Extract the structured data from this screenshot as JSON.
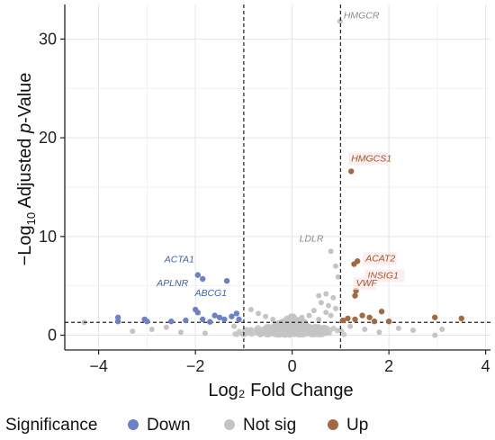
{
  "chart_data": {
    "type": "scatter",
    "title": "",
    "xlabel": "Log₂ Fold Change",
    "ylabel_prefix": "−Log",
    "ylabel_sub": "10",
    "ylabel_mid": " Adjusted ",
    "ylabel_italic": "p",
    "ylabel_suffix": "-Value",
    "xlim": [
      -4.7,
      4.1
    ],
    "ylim": [
      -1.5,
      33.5
    ],
    "x_ticks": [
      -4,
      -2,
      0,
      2,
      4
    ],
    "y_ticks": [
      0,
      10,
      20,
      30
    ],
    "grid": true,
    "thresholds": {
      "log2fc": [
        -1,
        1
      ],
      "neg_log10_padj": 1.3
    },
    "colors": {
      "Down": "#6d82c6",
      "Not sig": "#c4c4c4",
      "Up": "#a16a43",
      "label_down": "#3f5fae",
      "label_up": "#9a5a26",
      "label_ns": "#8a8a8a",
      "label_bg_up": "#fbe4ea"
    },
    "legend": {
      "title": "Significance",
      "position": "bottom",
      "entries": [
        {
          "label": "Down",
          "color_key": "Down"
        },
        {
          "label": "Not sig",
          "color_key": "Not sig"
        },
        {
          "label": "Up",
          "color_key": "Up"
        }
      ]
    },
    "series": [
      {
        "name": "Down",
        "points": [
          [
            -1.95,
            6.1
          ],
          [
            -1.85,
            5.7
          ],
          [
            -1.35,
            5.5
          ],
          [
            -2.0,
            2.6
          ],
          [
            -1.95,
            2.3
          ],
          [
            -1.6,
            2.0
          ],
          [
            -1.5,
            1.8
          ],
          [
            -1.25,
            1.9
          ],
          [
            -1.15,
            2.2
          ],
          [
            -1.1,
            1.6
          ],
          [
            -1.4,
            1.6
          ],
          [
            -1.85,
            1.6
          ],
          [
            -3.6,
            1.8
          ],
          [
            -3.6,
            1.4
          ],
          [
            -3.05,
            1.6
          ],
          [
            -3.0,
            1.4
          ],
          [
            -2.5,
            1.4
          ],
          [
            -2.2,
            1.5
          ],
          [
            -1.7,
            1.35
          ]
        ]
      },
      {
        "name": "Not sig",
        "points": [
          [
            0.99,
            31.8
          ],
          [
            0.8,
            8.5
          ],
          [
            0.9,
            7.0
          ],
          [
            0.95,
            5.9
          ],
          [
            0.55,
            4.0
          ],
          [
            0.7,
            4.2
          ],
          [
            0.85,
            3.8
          ],
          [
            0.6,
            3.3
          ],
          [
            0.75,
            3.0
          ],
          [
            0.9,
            2.7
          ],
          [
            0.45,
            2.5
          ],
          [
            0.7,
            2.3
          ],
          [
            0.35,
            2.0
          ],
          [
            0.8,
            2.0
          ],
          [
            0.2,
            1.8
          ],
          [
            0.55,
            1.6
          ],
          [
            -0.85,
            2.6
          ],
          [
            -0.7,
            2.2
          ],
          [
            -0.55,
            1.9
          ],
          [
            -0.4,
            1.6
          ],
          [
            -4.3,
            1.3
          ],
          [
            -3.3,
            0.4
          ],
          [
            -2.9,
            0.6
          ],
          [
            -2.6,
            0.8
          ],
          [
            2.95,
            0.0
          ],
          [
            3.1,
            0.6
          ],
          [
            2.5,
            0.5
          ],
          [
            2.2,
            0.7
          ],
          [
            -2.3,
            0.3
          ],
          [
            -1.8,
            0.2
          ],
          [
            1.8,
            0.3
          ],
          [
            1.5,
            0.6
          ],
          [
            -1.2,
            0.9
          ],
          [
            1.2,
            0.9
          ]
        ],
        "dense_cloud": [
          {
            "x_center": 0,
            "x_spread": 1.35,
            "y_max": 1.2
          },
          {
            "x_center": 0,
            "x_spread": 0.55,
            "y_max": 2.0
          }
        ]
      },
      {
        "name": "Up",
        "points": [
          [
            1.22,
            16.6
          ],
          [
            1.35,
            7.5
          ],
          [
            1.28,
            7.2
          ],
          [
            1.32,
            4.5
          ],
          [
            1.3,
            4.0
          ],
          [
            1.45,
            2.0
          ],
          [
            1.85,
            2.4
          ],
          [
            1.3,
            1.6
          ],
          [
            1.15,
            1.7
          ],
          [
            1.6,
            1.8
          ],
          [
            1.05,
            1.5
          ],
          [
            2.95,
            1.8
          ],
          [
            3.5,
            1.7
          ],
          [
            1.7,
            1.4
          ],
          [
            2.0,
            1.4
          ]
        ]
      }
    ],
    "labels": [
      {
        "text": "HMGCR",
        "x": 0.99,
        "y": 31.8,
        "series": "Not sig"
      },
      {
        "text": "HMGCS1",
        "x": 1.22,
        "y": 16.6,
        "series": "Up"
      },
      {
        "text": "LDLR",
        "x": 0.8,
        "y": 8.5,
        "series": "Not sig"
      },
      {
        "text": "ACAT2",
        "x": 1.35,
        "y": 7.5,
        "series": "Up"
      },
      {
        "text": "INSIG1",
        "x": 1.28,
        "y": 7.2,
        "series": "Up"
      },
      {
        "text": "VWF",
        "x": 1.32,
        "y": 4.5,
        "series": "Up"
      },
      {
        "text": "ACTA1",
        "x": -1.95,
        "y": 6.1,
        "series": "Down"
      },
      {
        "text": "APLNR",
        "x": -1.85,
        "y": 5.7,
        "series": "Down"
      },
      {
        "text": "ABCG1",
        "x": -1.35,
        "y": 5.5,
        "series": "Down"
      }
    ]
  }
}
